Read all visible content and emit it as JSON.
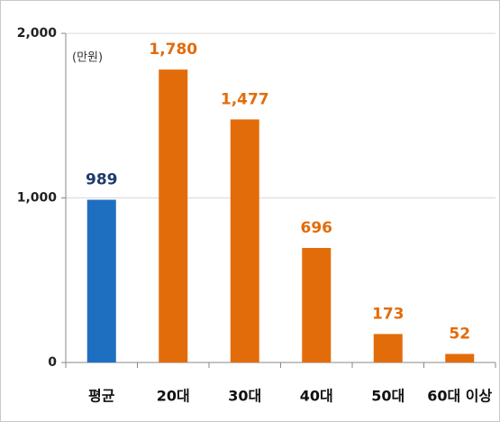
{
  "chart_data": {
    "type": "bar",
    "annotation": "(만원)",
    "categories": [
      "평균",
      "20대",
      "30대",
      "40대",
      "50대",
      "60대 이상"
    ],
    "values": [
      989,
      1780,
      1477,
      696,
      173,
      52
    ],
    "value_labels": [
      "989",
      "1,780",
      "1,477",
      "696",
      "173",
      "52"
    ],
    "colors": [
      "#1f6fc1",
      "#e36c0a",
      "#e36c0a",
      "#e36c0a",
      "#e36c0a",
      "#e36c0a"
    ],
    "label_colors": [
      "#1f3a6e",
      "#e36c0a",
      "#e36c0a",
      "#e36c0a",
      "#e36c0a",
      "#e36c0a"
    ],
    "ylim": [
      0,
      2000
    ],
    "yticks": [
      0,
      {
        "value": 1000,
        "label": "1,000"
      },
      {
        "value": 2000,
        "label": "2,000"
      }
    ],
    "grid": true
  }
}
